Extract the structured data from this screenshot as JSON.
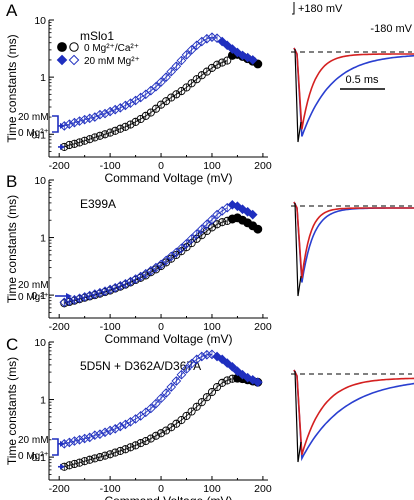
{
  "protocol": {
    "top_label": "+180 mV",
    "bottom_label": "-180 mV",
    "scale_label": "0.5 ms"
  },
  "colors": {
    "black": "#000000",
    "blue": "#1f2fbf",
    "red": "#d42020",
    "trace_blue": "#2a3fd0"
  },
  "chart_data": [
    {
      "type": "scatter",
      "panel": "A",
      "title": "mSlo1",
      "xlabel": "Command Voltage (mV)",
      "ylabel": "Time constants (ms)",
      "xlim": [
        -220,
        210
      ],
      "ylim": [
        0.04,
        10
      ],
      "yscale": "log",
      "xticks": [
        -200,
        -100,
        0,
        100,
        200
      ],
      "yticks": [
        0.1,
        1,
        10
      ],
      "legend": [
        {
          "name": "0 Mg²⁺/Ca²⁺",
          "markers": [
            "filled-circle",
            "open-circle"
          ],
          "color": "#000000"
        },
        {
          "name": "20 mM Mg²⁺",
          "markers": [
            "filled-diamond",
            "open-diamond"
          ],
          "color": "#1f2fbf"
        }
      ],
      "annotations": [
        "20 mM",
        "0 Mg²⁺"
      ],
      "series": [
        {
          "marker": "open-circle",
          "color": "#000000",
          "x": [
            -190,
            -180,
            -170,
            -160,
            -150,
            -140,
            -130,
            -120,
            -110,
            -100,
            -90,
            -80,
            -70,
            -60,
            -50,
            -40,
            -30,
            -20,
            -10,
            0,
            10,
            20,
            30,
            40,
            50,
            60,
            70,
            80,
            90,
            100,
            110,
            120,
            130
          ],
          "y": [
            0.06,
            0.065,
            0.068,
            0.072,
            0.077,
            0.082,
            0.088,
            0.094,
            0.1,
            0.107,
            0.115,
            0.125,
            0.135,
            0.148,
            0.165,
            0.185,
            0.21,
            0.24,
            0.28,
            0.33,
            0.38,
            0.44,
            0.5,
            0.57,
            0.66,
            0.78,
            0.92,
            1.08,
            1.25,
            1.45,
            1.65,
            1.8,
            1.95
          ]
        },
        {
          "marker": "filled-circle",
          "color": "#000000",
          "x": [
            140,
            150,
            160,
            170,
            180,
            190
          ],
          "y": [
            2.4,
            2.5,
            2.3,
            2.1,
            1.9,
            1.7
          ]
        },
        {
          "marker": "open-diamond",
          "color": "#1f2fbf",
          "x": [
            -190,
            -180,
            -170,
            -160,
            -150,
            -140,
            -130,
            -120,
            -110,
            -100,
            -90,
            -80,
            -70,
            -60,
            -50,
            -40,
            -30,
            -20,
            -10,
            0,
            10,
            20,
            30,
            40,
            50,
            60,
            70,
            80,
            90,
            100,
            110
          ],
          "y": [
            0.14,
            0.15,
            0.16,
            0.17,
            0.18,
            0.19,
            0.2,
            0.22,
            0.23,
            0.25,
            0.27,
            0.29,
            0.32,
            0.35,
            0.39,
            0.44,
            0.5,
            0.58,
            0.68,
            0.82,
            1.0,
            1.25,
            1.55,
            1.95,
            2.45,
            3.0,
            3.6,
            4.2,
            4.7,
            5.0,
            4.8
          ]
        },
        {
          "marker": "filled-diamond",
          "color": "#1f2fbf",
          "x": [
            120,
            130,
            140,
            150,
            160,
            170,
            180
          ],
          "y": [
            4.2,
            3.6,
            3.1,
            2.7,
            2.4,
            2.2,
            2.0
          ]
        }
      ]
    },
    {
      "type": "scatter",
      "panel": "B",
      "title": "E399A",
      "xlabel": "Command Voltage (mV)",
      "ylabel": "Time constants (ms)",
      "xlim": [
        -220,
        210
      ],
      "ylim": [
        0.04,
        10
      ],
      "yscale": "log",
      "xticks": [
        -200,
        -100,
        0,
        100,
        200
      ],
      "yticks": [
        0.1,
        1,
        10
      ],
      "annotations": [
        "20 mM",
        "0 Mg²⁺"
      ],
      "series": [
        {
          "marker": "open-circle",
          "color": "#000000",
          "x": [
            -190,
            -180,
            -170,
            -160,
            -150,
            -140,
            -130,
            -120,
            -110,
            -100,
            -90,
            -80,
            -70,
            -60,
            -50,
            -40,
            -30,
            -20,
            -10,
            0,
            10,
            20,
            30,
            40,
            50,
            60,
            70,
            80,
            90,
            100,
            110,
            120,
            130
          ],
          "y": [
            0.072,
            0.076,
            0.08,
            0.085,
            0.09,
            0.095,
            0.1,
            0.106,
            0.113,
            0.12,
            0.13,
            0.14,
            0.152,
            0.166,
            0.183,
            0.2,
            0.22,
            0.25,
            0.28,
            0.32,
            0.37,
            0.43,
            0.5,
            0.58,
            0.68,
            0.8,
            0.95,
            1.1,
            1.3,
            1.5,
            1.7,
            1.85,
            1.95
          ]
        },
        {
          "marker": "filled-circle",
          "color": "#000000",
          "x": [
            140,
            150,
            160,
            170,
            180,
            190
          ],
          "y": [
            2.1,
            2.2,
            2.0,
            1.8,
            1.6,
            1.4
          ]
        },
        {
          "marker": "open-diamond",
          "color": "#1f2fbf",
          "x": [
            -190,
            -180,
            -170,
            -160,
            -150,
            -140,
            -130,
            -120,
            -110,
            -100,
            -90,
            -80,
            -70,
            -60,
            -50,
            -40,
            -30,
            -20,
            -10,
            0,
            10,
            20,
            30,
            40,
            50,
            60,
            70,
            80,
            90,
            100,
            110,
            120,
            130
          ],
          "y": [
            0.075,
            0.079,
            0.083,
            0.088,
            0.093,
            0.098,
            0.104,
            0.11,
            0.117,
            0.125,
            0.134,
            0.145,
            0.157,
            0.172,
            0.19,
            0.21,
            0.235,
            0.265,
            0.3,
            0.34,
            0.4,
            0.47,
            0.55,
            0.65,
            0.78,
            0.95,
            1.15,
            1.4,
            1.7,
            2.05,
            2.5,
            2.9,
            3.3
          ]
        },
        {
          "marker": "filled-diamond",
          "color": "#1f2fbf",
          "x": [
            140,
            150,
            160,
            170,
            180
          ],
          "y": [
            3.7,
            3.5,
            3.1,
            2.8,
            2.5
          ]
        }
      ]
    },
    {
      "type": "scatter",
      "panel": "C",
      "title": "5D5N + D362A/D367A",
      "xlabel": "Command Voltage (mV)",
      "ylabel": "Time constants (ms)",
      "xlim": [
        -220,
        210
      ],
      "ylim": [
        0.04,
        10
      ],
      "yscale": "log",
      "xticks": [
        -200,
        -100,
        0,
        100,
        200
      ],
      "yticks": [
        0.1,
        1,
        10
      ],
      "annotations": [
        "20 mM",
        "0 Mg²⁺"
      ],
      "series": [
        {
          "marker": "open-circle",
          "color": "#000000",
          "x": [
            -190,
            -180,
            -170,
            -160,
            -150,
            -140,
            -130,
            -120,
            -110,
            -100,
            -90,
            -80,
            -70,
            -60,
            -50,
            -40,
            -30,
            -20,
            -10,
            0,
            10,
            20,
            30,
            40,
            50,
            60,
            70,
            80,
            90,
            100,
            110,
            120,
            130,
            140
          ],
          "y": [
            0.068,
            0.072,
            0.076,
            0.08,
            0.085,
            0.09,
            0.095,
            0.1,
            0.106,
            0.112,
            0.12,
            0.128,
            0.137,
            0.148,
            0.16,
            0.175,
            0.19,
            0.21,
            0.235,
            0.26,
            0.29,
            0.33,
            0.38,
            0.44,
            0.52,
            0.62,
            0.75,
            0.9,
            1.1,
            1.35,
            1.65,
            1.95,
            2.15,
            2.3
          ]
        },
        {
          "marker": "filled-circle",
          "color": "#000000",
          "x": [
            150,
            160,
            170,
            180,
            190
          ],
          "y": [
            2.35,
            2.3,
            2.2,
            2.1,
            2.0
          ]
        },
        {
          "marker": "open-diamond",
          "color": "#1f2fbf",
          "x": [
            -190,
            -180,
            -170,
            -160,
            -150,
            -140,
            -130,
            -120,
            -110,
            -100,
            -90,
            -80,
            -70,
            -60,
            -50,
            -40,
            -30,
            -20,
            -10,
            0,
            10,
            20,
            30,
            40,
            50,
            60,
            70,
            80,
            90,
            100
          ],
          "y": [
            0.17,
            0.18,
            0.19,
            0.2,
            0.21,
            0.22,
            0.24,
            0.25,
            0.27,
            0.29,
            0.31,
            0.34,
            0.37,
            0.41,
            0.46,
            0.52,
            0.6,
            0.7,
            0.85,
            1.05,
            1.3,
            1.65,
            2.1,
            2.7,
            3.4,
            4.2,
            5.0,
            5.6,
            6.0,
            6.1
          ]
        },
        {
          "marker": "filled-diamond",
          "color": "#1f2fbf",
          "x": [
            110,
            120,
            130,
            140,
            150,
            160,
            170,
            180,
            190
          ],
          "y": [
            5.6,
            5.0,
            4.3,
            3.7,
            3.1,
            2.7,
            2.4,
            2.2,
            2.0
          ]
        }
      ]
    }
  ]
}
